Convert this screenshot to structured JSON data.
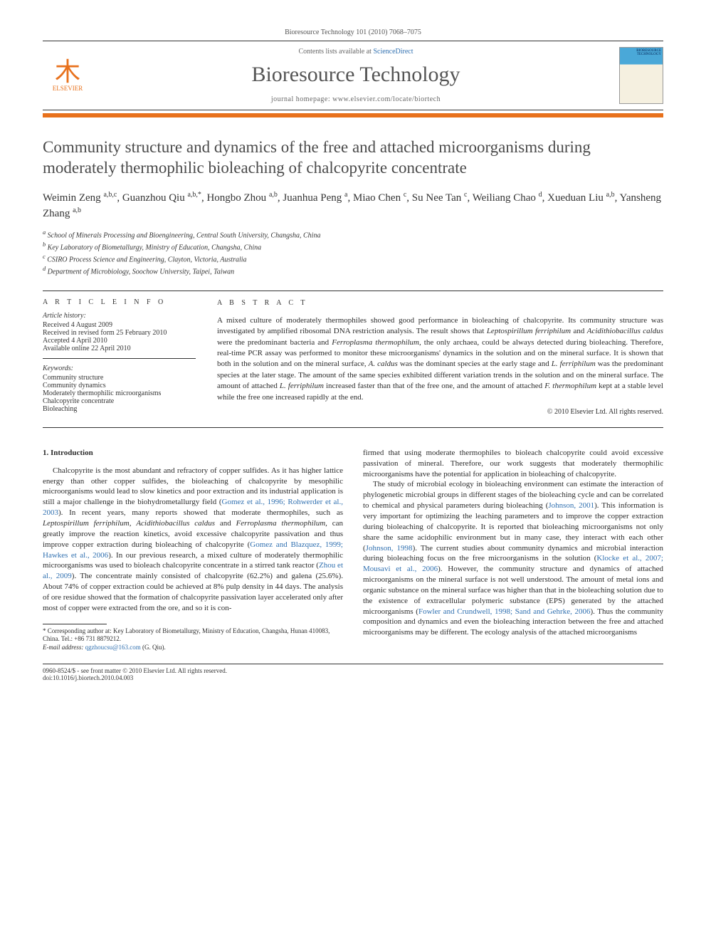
{
  "header": {
    "citation": "Bioresource Technology 101 (2010) 7068–7075",
    "contents_prefix": "Contents lists available at ",
    "contents_link": "ScienceDirect",
    "journal_name": "Bioresource Technology",
    "homepage_prefix": "journal homepage: ",
    "homepage_url": "www.elsevier.com/locate/biortech",
    "publisher_label": "ELSEVIER",
    "cover_text": "BIORESOURCE TECHNOLOGY",
    "colors": {
      "accent": "#e8711c",
      "link": "#3070b0",
      "text": "#2b2b2b"
    }
  },
  "article": {
    "title": "Community structure and dynamics of the free and attached microorganisms during moderately thermophilic bioleaching of chalcopyrite concentrate",
    "authors_html": "Weimin Zeng <span class='sup'>a,b,c</span>, Guanzhou Qiu <span class='sup'>a,b,*</span>, Hongbo Zhou <span class='sup'>a,b</span>, Juanhua Peng <span class='sup'>a</span>, Miao Chen <span class='sup'>c</span>, Su Nee Tan <span class='sup'>c</span>, Weiliang Chao <span class='sup'>d</span>, Xueduan Liu <span class='sup'>a,b</span>, Yansheng Zhang <span class='sup'>a,b</span>",
    "affiliations": [
      "a School of Minerals Processing and Bioengineering, Central South University, Changsha, China",
      "b Key Laboratory of Biometallurgy, Ministry of Education, Changsha, China",
      "c CSIRO Process Science and Engineering, Clayton, Victoria, Australia",
      "d Department of Microbiology, Soochow University, Taipei, Taiwan"
    ]
  },
  "info": {
    "heading": "A R T I C L E   I N F O",
    "history_head": "Article history:",
    "history": [
      "Received 4 August 2009",
      "Received in revised form 25 February 2010",
      "Accepted 4 April 2010",
      "Available online 22 April 2010"
    ],
    "keywords_head": "Keywords:",
    "keywords": [
      "Community structure",
      "Community dynamics",
      "Moderately thermophilic microorganisms",
      "Chalcopyrite concentrate",
      "Bioleaching"
    ]
  },
  "abstract": {
    "heading": "A B S T R A C T",
    "text": "A mixed culture of moderately thermophiles showed good performance in bioleaching of chalcopyrite. Its community structure was investigated by amplified ribosomal DNA restriction analysis. The result shows that Leptospirillum ferriphilum and Acidithiobacillus caldus were the predominant bacteria and Ferroplasma thermophilum, the only archaea, could be always detected during bioleaching. Therefore, real-time PCR assay was performed to monitor these microorganisms' dynamics in the solution and on the mineral surface. It is shown that both in the solution and on the mineral surface, A. caldus was the dominant species at the early stage and L. ferriphilum was the predominant species at the later stage. The amount of the same species exhibited different variation trends in the solution and on the mineral surface. The amount of attached L. ferriphilum increased faster than that of the free one, and the amount of attached F. thermophilum kept at a stable level while the free one increased rapidly at the end.",
    "copyright": "© 2010 Elsevier Ltd. All rights reserved."
  },
  "body": {
    "section_heading": "1. Introduction",
    "col1": "Chalcopyrite is the most abundant and refractory of copper sulfides. As it has higher lattice energy than other copper sulfides, the bioleaching of chalcopyrite by mesophilic microorganisms would lead to slow kinetics and poor extraction and its industrial application is still a major challenge in the biohydrometallurgy field (Gomez et al., 1996; Rohwerder et al., 2003). In recent years, many reports showed that moderate thermophiles, such as Leptospirillum ferriphilum, Acidithiobacillus caldus and Ferroplasma thermophilum, can greatly improve the reaction kinetics, avoid excessive chalcopyrite passivation and thus improve copper extraction during bioleaching of chalcopyrite (Gomez and Blazquez, 1999; Hawkes et al., 2006). In our previous research, a mixed culture of moderately thermophilic microorganisms was used to bioleach chalcopyrite concentrate in a stirred tank reactor (Zhou et al., 2009). The concentrate mainly consisted of chalcopyrite (62.2%) and galena (25.6%). About 74% of copper extraction could be achieved at 8% pulp density in 44 days. The analysis of ore residue showed that the formation of chalcopyrite passivation layer accelerated only after most of copper were extracted from the ore, and so it is con-",
    "col2_p1": "firmed that using moderate thermophiles to bioleach chalcopyrite could avoid excessive passivation of mineral. Therefore, our work suggests that moderately thermophilic microorganisms have the potential for application in bioleaching of chalcopyrite.",
    "col2_p2": "The study of microbial ecology in bioleaching environment can estimate the interaction of phylogenetic microbial groups in different stages of the bioleaching cycle and can be correlated to chemical and physical parameters during bioleaching (Johnson, 2001). This information is very important for optimizing the leaching parameters and to improve the copper extraction during bioleaching of chalcopyrite. It is reported that bioleaching microorganisms not only share the same acidophilic environment but in many case, they interact with each other (Johnson, 1998). The current studies about community dynamics and microbial interaction during bioleaching focus on the free microorganisms in the solution (Klocke et al., 2007; Mousavi et al., 2006). However, the community structure and dynamics of attached microorganisms on the mineral surface is not well understood. The amount of metal ions and organic substance on the mineral surface was higher than that in the bioleaching solution due to the existence of extracellular polymeric substance (EPS) generated by the attached microorganisms (Fowler and Crundwell, 1998; Sand and Gehrke, 2006). Thus the community composition and dynamics and even the bioleaching interaction between the free and attached microorganisms may be different. The ecology analysis of the attached microorganisms"
  },
  "footnotes": {
    "corr": "* Corresponding author at: Key Laboratory of Biometallurgy, Ministry of Education, Changsha, Hunan 410083, China. Tel.: +86 731 8879212.",
    "email_label": "E-mail address: ",
    "email": "qgzhoucsu@163.com",
    "email_suffix": " (G. Qiu)."
  },
  "footer": {
    "line1": "0960-8524/$ - see front matter © 2010 Elsevier Ltd. All rights reserved.",
    "line2": "doi:10.1016/j.biortech.2010.04.003"
  }
}
